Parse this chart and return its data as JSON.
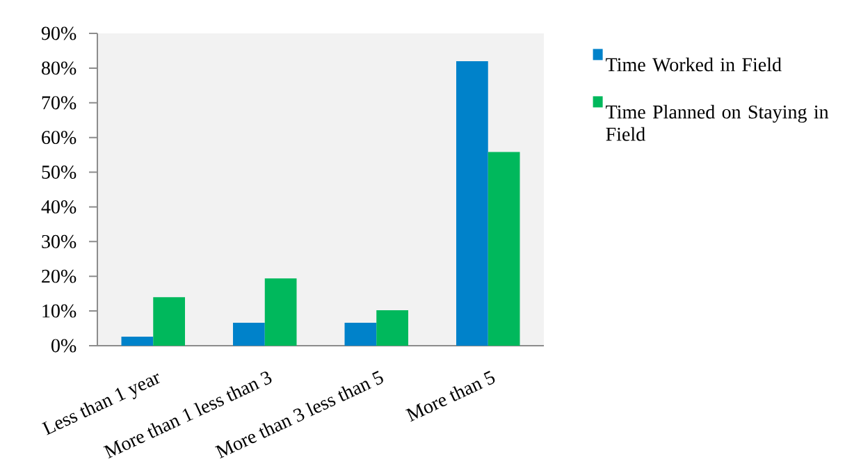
{
  "chart_data": {
    "type": "bar",
    "categories": [
      "Less than 1 year",
      "More than 1 less than 3",
      "More than 3 less than 5",
      "More than 5"
    ],
    "series": [
      {
        "name": "Time Worked in Field",
        "color": "#0082ca",
        "values": [
          2.6,
          6.6,
          6.6,
          82.0
        ]
      },
      {
        "name": "Time Planned on Staying in Field",
        "color": "#00b85c",
        "values": [
          14.0,
          19.4,
          10.2,
          55.8
        ]
      }
    ],
    "ylim": [
      0,
      90
    ],
    "yticks": [
      {
        "value": 0,
        "label": "0%"
      },
      {
        "value": 10,
        "label": "10%"
      },
      {
        "value": 20,
        "label": "20%"
      },
      {
        "value": 30,
        "label": "30%"
      },
      {
        "value": 40,
        "label": "40%"
      },
      {
        "value": 50,
        "label": "50%"
      },
      {
        "value": 60,
        "label": "60%"
      },
      {
        "value": 70,
        "label": "70%"
      },
      {
        "value": 80,
        "label": "80%"
      },
      {
        "value": 90,
        "label": "90%"
      }
    ],
    "legend": "right"
  }
}
